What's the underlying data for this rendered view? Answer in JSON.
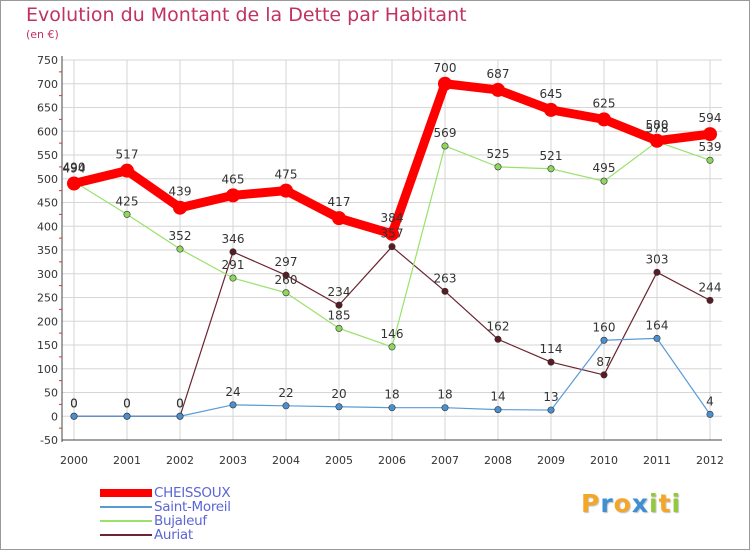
{
  "chart_data": {
    "type": "line",
    "title": "Evolution du Montant de la Dette par Habitant",
    "subtitle": "(en €)",
    "x": [
      "2000",
      "2001",
      "2002",
      "2003",
      "2004",
      "2005",
      "2006",
      "2007",
      "2008",
      "2009",
      "2010",
      "2011",
      "2012"
    ],
    "y_ticks": [
      -50,
      0,
      50,
      100,
      150,
      200,
      250,
      300,
      350,
      400,
      450,
      500,
      550,
      600,
      650,
      700,
      750
    ],
    "ylim": [
      -50,
      750
    ],
    "grid": true,
    "legend_position": "bottom-left",
    "series": [
      {
        "name": "CHEISSOUX",
        "color": "#ff0000",
        "values": [
          490,
          517,
          439,
          465,
          475,
          417,
          384,
          700,
          687,
          645,
          625,
          580,
          594
        ]
      },
      {
        "name": "Saint-Moreil",
        "color": "#5b9bd5",
        "values": [
          0,
          0,
          0,
          24,
          22,
          20,
          18,
          18,
          14,
          13,
          160,
          164,
          4
        ]
      },
      {
        "name": "Bujaleuf",
        "color": "#99e26b",
        "values": [
          494,
          425,
          352,
          291,
          260,
          185,
          146,
          569,
          525,
          521,
          495,
          578,
          539
        ]
      },
      {
        "name": "Auriat",
        "color": "#6b2430",
        "values": [
          0,
          0,
          0,
          346,
          297,
          234,
          357,
          263,
          162,
          114,
          87,
          303,
          244
        ]
      }
    ]
  },
  "brand": {
    "letters": [
      "P",
      "r",
      "o",
      "x",
      "i",
      "t",
      "i"
    ],
    "colors": [
      "#f3a62a",
      "#3f8fd2",
      "#f3a62a",
      "#3f8fd2",
      "#94c83d",
      "#f3a62a",
      "#94c83d"
    ]
  }
}
